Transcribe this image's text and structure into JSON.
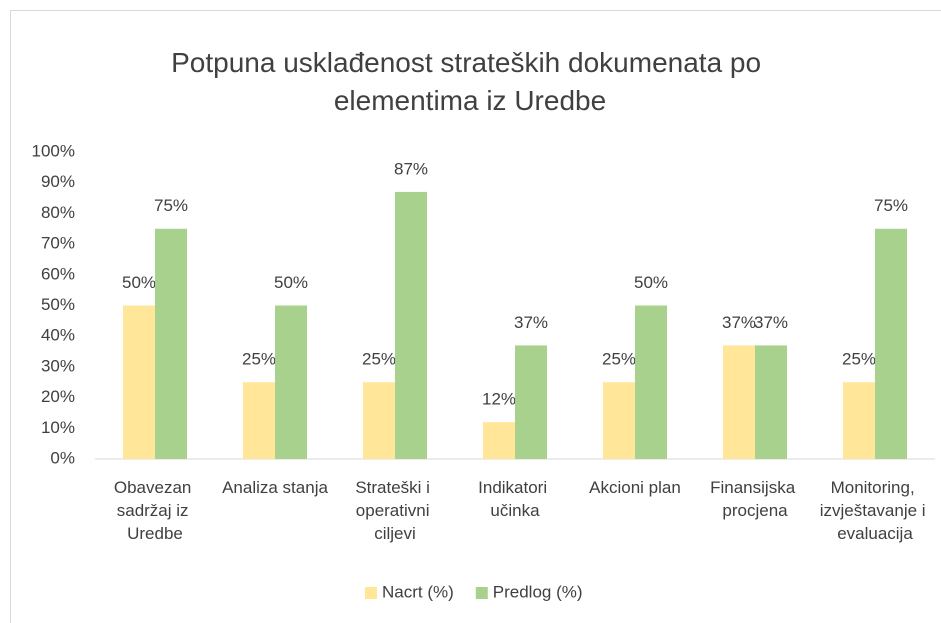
{
  "chart_data": {
    "type": "bar",
    "title": "Potpuna usklađenost strateških dokumenata po elementima iz Uredbe",
    "categories": [
      "Obavezan sadržaj iz Uredbe",
      "Analiza stanja",
      "Strateški i operativni ciljevi",
      "Indikatori učinka",
      "Akcioni plan",
      "Finansijska procjena",
      "Monitoring, izvještavanje i evaluacija"
    ],
    "series": [
      {
        "name": "Nacrt (%)",
        "color": "#ffe699",
        "values": [
          50,
          25,
          25,
          12,
          25,
          37,
          25
        ],
        "value_labels": [
          "50%",
          "25%",
          "25%",
          "12%",
          "25%",
          "37%",
          "25%"
        ]
      },
      {
        "name": "Predlog (%)",
        "color": "#a9d18e",
        "values": [
          75,
          50,
          87,
          37,
          50,
          37,
          75
        ],
        "value_labels": [
          "75%",
          "50%",
          "87%",
          "37%",
          "50%",
          "37%",
          "75%"
        ]
      }
    ],
    "ylim": [
      0,
      100
    ],
    "yticks": [
      {
        "value": 0,
        "label": "0%"
      },
      {
        "value": 10,
        "label": "10%"
      },
      {
        "value": 20,
        "label": "20%"
      },
      {
        "value": 30,
        "label": "30%"
      },
      {
        "value": 40,
        "label": "40%"
      },
      {
        "value": 50,
        "label": "50%"
      },
      {
        "value": 60,
        "label": "60%"
      },
      {
        "value": 70,
        "label": "70%"
      },
      {
        "value": 80,
        "label": "80%"
      },
      {
        "value": 90,
        "label": "90%"
      },
      {
        "value": 100,
        "label": "100%"
      }
    ],
    "grid": false,
    "legend": "bottom"
  }
}
